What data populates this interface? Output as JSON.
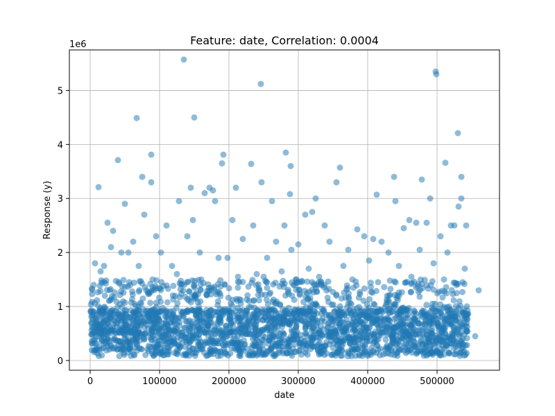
{
  "chart_data": {
    "type": "scatter",
    "title": "Feature: date, Correlation: 0.0004",
    "xlabel": "date",
    "ylabel": "Response (y)",
    "y_multiplier_label": "1e6",
    "xlim": [
      -30000,
      590000
    ],
    "ylim": [
      -0.18,
      5.75
    ],
    "y_unit": "1e6",
    "x_ticks": [
      0,
      100000,
      200000,
      300000,
      400000,
      500000
    ],
    "x_tick_labels": [
      "0",
      "100000",
      "200000",
      "300000",
      "400000",
      "500000"
    ],
    "y_ticks": [
      0,
      1,
      2,
      3,
      4,
      5
    ],
    "y_tick_labels": [
      "0",
      "1",
      "2",
      "3",
      "4",
      "5"
    ],
    "grid": true,
    "marker_color": "#1f77b4",
    "marker_alpha": 0.5,
    "dense_band": {
      "x_range": [
        0,
        545000
      ],
      "y_range": [
        0.08,
        0.95
      ],
      "approx_points": 2500
    },
    "series": [
      {
        "x": [
          135000,
          498000,
          499000,
          246000,
          67000,
          150000,
          530000,
          40000,
          88000,
          192000,
          282000,
          512000,
          190000,
          232000,
          289000,
          355000,
          360000,
          75000,
          88000,
          247000,
          172000,
          177000,
          145000,
          165000,
          210000,
          325000,
          490000,
          535000,
          535000,
          438000,
          478000,
          440000,
          262000,
          288000,
          413000,
          531000,
          525000,
          50000,
          78000,
          128000,
          148000,
          180000,
          205000,
          235000,
          280000,
          310000,
          320000,
          385000,
          460000,
          470000,
          505000,
          7000,
          12000,
          25000,
          33000,
          45000,
          62000,
          95000,
          110000,
          158000,
          220000,
          268000,
          300000,
          338000,
          395000,
          420000,
          452000,
          485000,
          520000,
          542000,
          560000,
          555000,
          30000,
          55000,
          102000,
          140000,
          185000,
          255000,
          290000,
          345000,
          372000,
          408000,
          430000,
          475000,
          515000,
          20000,
          70000,
          118000,
          198000,
          240000,
          276000,
          315000,
          365000,
          402000,
          445000,
          495000,
          540000,
          5000,
          15000,
          90000,
          125000,
          160000,
          213000,
          250000,
          297000,
          330000,
          378000,
          415000,
          463000,
          510000,
          537000
        ],
        "y": [
          5.57,
          5.35,
          5.3,
          5.12,
          4.49,
          4.5,
          4.21,
          3.71,
          3.81,
          3.81,
          3.85,
          3.66,
          3.65,
          3.64,
          3.6,
          3.3,
          3.57,
          3.4,
          3.3,
          3.3,
          3.2,
          3.15,
          3.2,
          3.1,
          3.2,
          3.0,
          3.0,
          3.4,
          3.0,
          3.4,
          3.35,
          2.95,
          2.95,
          3.08,
          3.07,
          2.85,
          2.5,
          2.9,
          2.7,
          2.95,
          2.6,
          2.95,
          2.6,
          2.5,
          2.5,
          2.7,
          2.75,
          2.43,
          2.6,
          2.55,
          2.3,
          1.8,
          3.21,
          2.55,
          2.4,
          2.0,
          2.2,
          2.3,
          2.5,
          2.0,
          2.25,
          2.2,
          2.15,
          2.5,
          2.3,
          2.2,
          2.45,
          2.55,
          2.5,
          2.5,
          1.3,
          0.45,
          2.1,
          2.0,
          2.0,
          2.3,
          1.9,
          1.9,
          2.05,
          2.2,
          2.05,
          2.25,
          2.0,
          2.05,
          2.0,
          1.75,
          1.75,
          1.75,
          1.9,
          1.6,
          1.65,
          1.7,
          1.75,
          1.85,
          1.75,
          1.8,
          1.7,
          1.4,
          1.65,
          1.5,
          1.6,
          1.5,
          1.55,
          1.55,
          1.5,
          1.55,
          1.5,
          1.45,
          1.55,
          1.5,
          1.45
        ]
      }
    ]
  }
}
